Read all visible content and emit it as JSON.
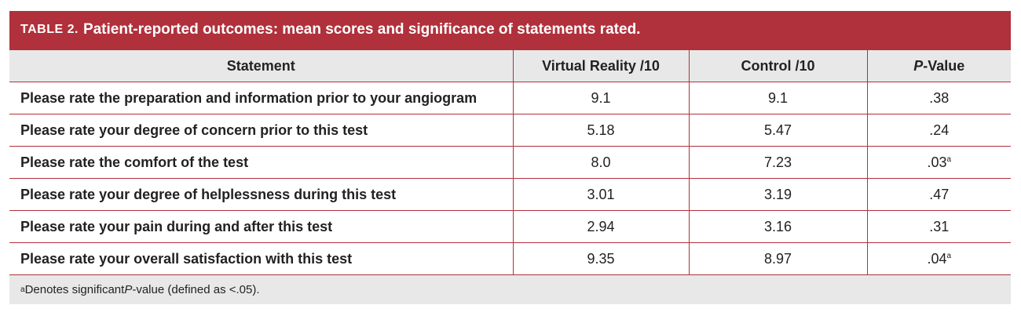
{
  "title": {
    "label": "TABLE 2.",
    "text": "Patient-reported outcomes: mean scores and significance of statements rated."
  },
  "headers": {
    "statement": "Statement",
    "vr": "Virtual Reality  /10",
    "control": "Control  /10",
    "p_italic": "P",
    "p_rest": "-Value"
  },
  "rows": [
    {
      "statement": "Please rate the preparation and information prior to your angiogram",
      "vr": "9.1",
      "control": "9.1",
      "p": ".38",
      "sup": ""
    },
    {
      "statement": "Please rate your degree of concern prior to this test",
      "vr": "5.18",
      "control": "5.47",
      "p": ".24",
      "sup": ""
    },
    {
      "statement": "Please rate the comfort of the test",
      "vr": "8.0",
      "control": "7.23",
      "p": ".03",
      "sup": "a"
    },
    {
      "statement": "Please rate your degree of helplessness during this test",
      "vr": "3.01",
      "control": "3.19",
      "p": ".47",
      "sup": ""
    },
    {
      "statement": "Please rate your pain during and after this test",
      "vr": "2.94",
      "control": "3.16",
      "p": ".31",
      "sup": ""
    },
    {
      "statement": "Please rate your overall satisfaction with this test",
      "vr": "9.35",
      "control": "8.97",
      "p": ".04",
      "sup": "a"
    }
  ],
  "footnote": {
    "marker": "a",
    "pre": "Denotes significant ",
    "italic": "P",
    "post": "-value (defined as <.05)."
  },
  "colors": {
    "accent": "#b0313b",
    "header_bg": "#e8e8e8"
  }
}
